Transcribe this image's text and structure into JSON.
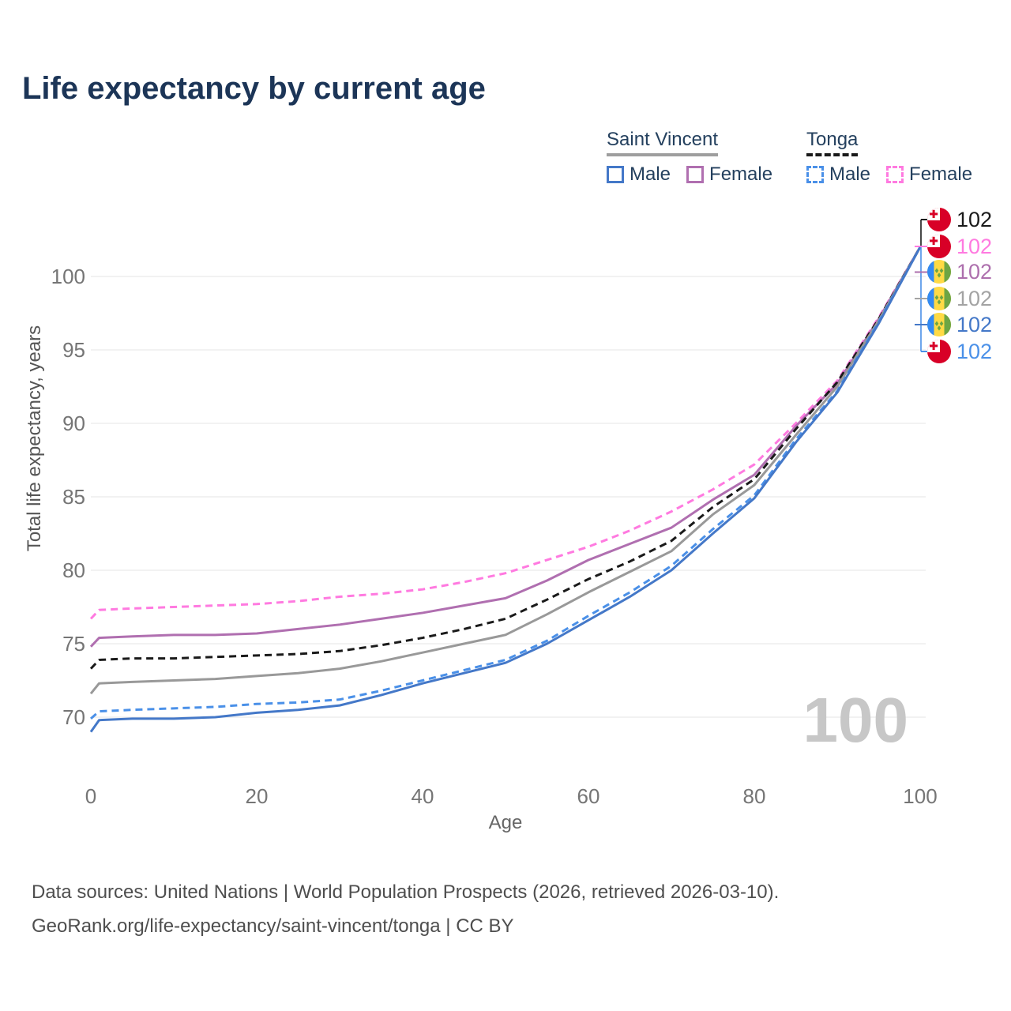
{
  "header": {
    "title": "Life expectancy by current age"
  },
  "legend": {
    "groups": [
      {
        "label": "Saint Vincent",
        "underline_style": "solid",
        "underline_color": "#9e9e9e",
        "items": [
          {
            "label": "Male",
            "color": "#4478c8",
            "dashed": false
          },
          {
            "label": "Female",
            "color": "#b06fb0",
            "dashed": false
          }
        ]
      },
      {
        "label": "Tonga",
        "underline_style": "dashed",
        "underline_color": "#1a1a1a",
        "items": [
          {
            "label": "Male",
            "color": "#4a90e8",
            "dashed": true
          },
          {
            "label": "Female",
            "color": "#ff7ae0",
            "dashed": true
          }
        ]
      }
    ]
  },
  "chart_data": {
    "type": "line",
    "title": "Life expectancy by current age",
    "xlabel": "Age",
    "ylabel": "Total life expectancy, years",
    "xlim": [
      0,
      100
    ],
    "ylim": [
      68.5,
      103
    ],
    "xticks": [
      0,
      20,
      40,
      60,
      80,
      100
    ],
    "yticks": [
      70,
      75,
      80,
      85,
      90,
      95,
      100
    ],
    "grid": "horizontal",
    "x": [
      0,
      1,
      5,
      10,
      15,
      20,
      25,
      30,
      35,
      40,
      45,
      50,
      55,
      60,
      65,
      70,
      75,
      80,
      85,
      90,
      95,
      100
    ],
    "series": [
      {
        "name": "Tonga Female",
        "country": "Tonga",
        "sex": "Female",
        "color": "#ff7ae0",
        "dash": "dashed",
        "values": [
          76.7,
          77.3,
          77.4,
          77.5,
          77.6,
          77.7,
          77.9,
          78.2,
          78.4,
          78.7,
          79.2,
          79.8,
          80.7,
          81.6,
          82.7,
          84.0,
          85.5,
          87.2,
          90.0,
          92.9,
          97.2,
          102
        ]
      },
      {
        "name": "Saint Vincent Female",
        "country": "Saint Vincent",
        "sex": "Female",
        "color": "#b06fb0",
        "dash": "solid",
        "values": [
          74.8,
          75.4,
          75.5,
          75.6,
          75.6,
          75.7,
          76.0,
          76.3,
          76.7,
          77.1,
          77.6,
          78.1,
          79.3,
          80.7,
          81.8,
          82.9,
          84.8,
          86.5,
          89.8,
          92.7,
          97.1,
          102
        ]
      },
      {
        "name": "Tonga",
        "country": "Tonga",
        "sex": "All",
        "color": "#1a1a1a",
        "dash": "dashed",
        "values": [
          73.3,
          73.9,
          74.0,
          74.0,
          74.1,
          74.2,
          74.3,
          74.5,
          74.9,
          75.4,
          76.0,
          76.7,
          78.0,
          79.4,
          80.6,
          82.0,
          84.3,
          86.2,
          89.6,
          92.8,
          97.1,
          102
        ]
      },
      {
        "name": "Saint Vincent",
        "country": "Saint Vincent",
        "sex": "All",
        "color": "#999999",
        "dash": "solid",
        "values": [
          71.6,
          72.3,
          72.4,
          72.5,
          72.6,
          72.8,
          73.0,
          73.3,
          73.8,
          74.4,
          75.0,
          75.6,
          77.0,
          78.5,
          79.9,
          81.3,
          83.8,
          85.8,
          89.2,
          92.5,
          97.0,
          102
        ]
      },
      {
        "name": "Tonga Male",
        "country": "Tonga",
        "sex": "Male",
        "color": "#4a90e8",
        "dash": "dashed",
        "values": [
          69.9,
          70.4,
          70.5,
          70.6,
          70.7,
          70.9,
          71.0,
          71.2,
          71.8,
          72.5,
          73.2,
          73.9,
          75.2,
          76.9,
          78.5,
          80.3,
          82.8,
          85.1,
          88.9,
          92.2,
          96.9,
          102
        ]
      },
      {
        "name": "Saint Vincent Male",
        "country": "Saint Vincent",
        "sex": "Male",
        "color": "#4478c8",
        "dash": "solid",
        "values": [
          69.0,
          69.8,
          69.9,
          69.9,
          70.0,
          70.3,
          70.5,
          70.8,
          71.5,
          72.3,
          73.0,
          73.7,
          75.0,
          76.6,
          78.2,
          80.0,
          82.5,
          84.9,
          88.7,
          92.1,
          96.8,
          102
        ]
      }
    ],
    "end_labels": [
      {
        "value": "102",
        "series": "Tonga",
        "flag": "tonga",
        "color": "#1a1a1a"
      },
      {
        "value": "102",
        "series": "Tonga Female",
        "flag": "tonga",
        "color": "#ff7ae0"
      },
      {
        "value": "102",
        "series": "Saint Vincent Female",
        "flag": "saint-vincent",
        "color": "#ad6fad"
      },
      {
        "value": "102",
        "series": "Saint Vincent",
        "flag": "saint-vincent",
        "color": "#a3a3a3"
      },
      {
        "value": "102",
        "series": "Saint Vincent Male",
        "flag": "saint-vincent",
        "color": "#4478c8"
      },
      {
        "value": "102",
        "series": "Tonga Male",
        "flag": "tonga",
        "color": "#4a90e8"
      }
    ],
    "age_watermark": "100"
  },
  "footer": {
    "line1": "Data sources: United Nations | World Population Prospects (2026, retrieved 2026-03-10).",
    "line2": "GeoRank.org/life-expectancy/saint-vincent/tonga | CC BY"
  }
}
